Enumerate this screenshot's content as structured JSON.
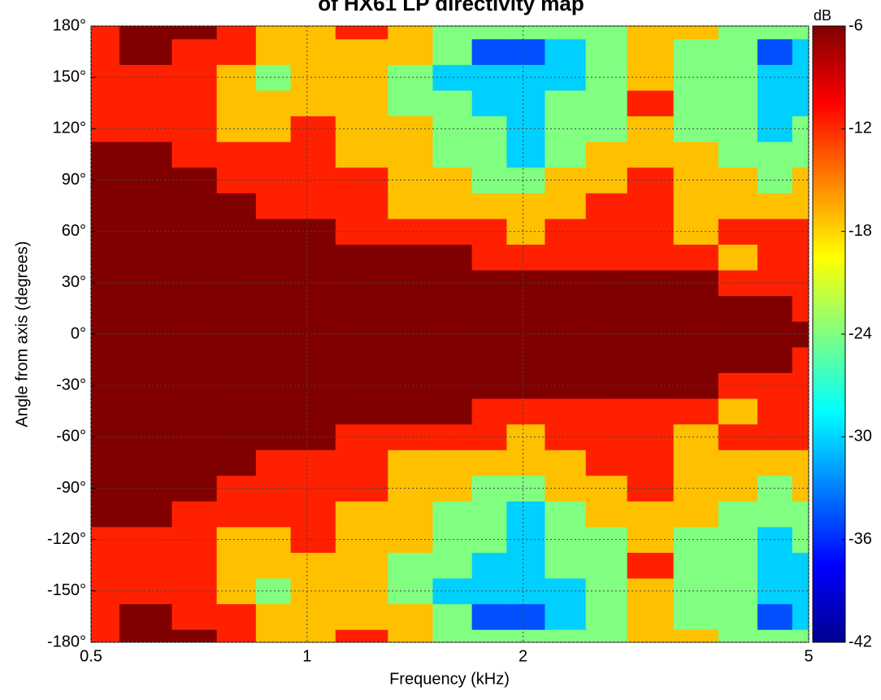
{
  "chart_data": {
    "type": "contour",
    "title": "of HX61 LP directivity map",
    "x_label": "Frequency (kHz)",
    "y_label": "Angle from axis (degrees)",
    "colorbar_label": "dB",
    "log_x": true,
    "grid": true,
    "xlim": [
      0.5,
      5
    ],
    "xticks": [
      0.5,
      1,
      2,
      5
    ],
    "ylim": [
      -180,
      180
    ],
    "yticks": [
      {
        "value": -180,
        "label": "-180°"
      },
      {
        "value": -150,
        "label": "-150°"
      },
      {
        "value": -120,
        "label": "-120°"
      },
      {
        "value": -90,
        "label": "-90°"
      },
      {
        "value": -60,
        "label": "-60°"
      },
      {
        "value": -30,
        "label": "-30°"
      },
      {
        "value": 0,
        "label": "0°"
      },
      {
        "value": 30,
        "label": "30°"
      },
      {
        "value": 60,
        "label": "60°"
      },
      {
        "value": 90,
        "label": "90°"
      },
      {
        "value": 120,
        "label": "120°"
      },
      {
        "value": 150,
        "label": "150°"
      },
      {
        "value": 180,
        "label": "180°"
      }
    ],
    "clim": [
      -42,
      -6
    ],
    "cticks": [
      -6,
      -12,
      -18,
      -24,
      -30,
      -36,
      -42
    ],
    "levels": [
      -36,
      -30,
      -24,
      -18,
      -12,
      -6
    ],
    "colors": [
      "#00008f",
      "#0050ff",
      "#00d0ff",
      "#80ff80",
      "#ffc000",
      "#ff2000",
      "#800000"
    ],
    "x": [
      0.5,
      0.6,
      0.7,
      0.8,
      0.9,
      1,
      1.2,
      1.4,
      1.6,
      1.8,
      2,
      2.3,
      2.6,
      3,
      3.5,
      4,
      4.5,
      5
    ],
    "y": [
      -180,
      -165,
      -150,
      -135,
      -120,
      -105,
      -90,
      -75,
      -60,
      -45,
      -30,
      -15,
      0,
      15,
      30,
      45,
      60,
      75,
      90,
      105,
      120,
      135,
      150,
      165,
      180
    ],
    "z": [
      [
        -8,
        -5,
        -5,
        -9,
        -12,
        -14,
        -11,
        -15,
        -20,
        -21,
        -22,
        -19,
        -18,
        -16,
        -17,
        -20,
        -23,
        -22
      ],
      [
        -6,
        -5,
        -6,
        -10,
        -13,
        -15,
        -12,
        -17,
        -22,
        -30,
        -34,
        -25,
        -21,
        -17,
        -18,
        -21,
        -30,
        -26
      ],
      [
        -8,
        -7,
        -9,
        -12,
        -20,
        -14,
        -13,
        -21,
        -24,
        -28,
        -29,
        -24,
        -22,
        -17,
        -19,
        -21,
        -29,
        -27
      ],
      [
        -9,
        -10,
        -10,
        -13,
        -15,
        -13,
        -14,
        -19,
        -22,
        -24,
        -26,
        -22,
        -22,
        -10,
        -18,
        -20,
        -26,
        -26
      ],
      [
        -8,
        -8,
        -9,
        -12,
        -13,
        -11,
        -13,
        -17,
        -20,
        -23,
        -27,
        -20,
        -20,
        -16,
        -20,
        -22,
        -24,
        -22
      ],
      [
        -5,
        -4,
        -7,
        -10,
        -11,
        -11,
        -12,
        -16,
        -19,
        -22,
        -25,
        -19,
        -16,
        -13,
        -17,
        -20,
        -21,
        -20
      ],
      [
        -3,
        -3,
        -5,
        -7,
        -9,
        -10,
        -11,
        -14,
        -16,
        -19,
        -20,
        -16,
        -13,
        -10,
        -14,
        -17,
        -19,
        -17
      ],
      [
        -2,
        -2,
        -3,
        -5,
        -7,
        -8,
        -10,
        -13,
        -15,
        -14,
        -17,
        -13,
        -11,
        -9,
        -12,
        -14,
        -16,
        -15
      ],
      [
        -2,
        -2,
        -2,
        -2,
        -2,
        -4,
        -7,
        -9,
        -10,
        -11,
        -14,
        -10,
        -9,
        -11,
        -13,
        -10,
        -9,
        -10
      ],
      [
        -3,
        -3,
        -3,
        -3,
        -3,
        -3,
        -3,
        -3,
        -5,
        -7,
        -8,
        -8,
        -6,
        -8,
        -9,
        -13,
        -10,
        -10
      ],
      [
        -2,
        -2,
        -2,
        -2,
        -2,
        -2,
        -2,
        -2,
        -2,
        -2,
        -2,
        -2,
        -2,
        -3,
        -5,
        -8,
        -10,
        -9
      ],
      [
        -2,
        -2,
        -2,
        -2,
        -2,
        -2,
        -2,
        -2,
        -2,
        -2,
        -2,
        -2,
        -2,
        -2,
        -2,
        -3,
        -5,
        -8
      ],
      [
        -2,
        -2,
        -2,
        -2,
        -2,
        -2,
        -2,
        -2,
        -2,
        -2,
        -2,
        -2,
        -2,
        -2,
        -2,
        -2,
        -2,
        -2
      ],
      [
        -2,
        -2,
        -2,
        -2,
        -2,
        -2,
        -2,
        -2,
        -2,
        -2,
        -2,
        -2,
        -2,
        -2,
        -2,
        -3,
        -5,
        -8
      ],
      [
        -2,
        -2,
        -2,
        -2,
        -2,
        -2,
        -2,
        -2,
        -2,
        -2,
        -2,
        -2,
        -2,
        -3,
        -5,
        -8,
        -10,
        -9
      ],
      [
        -3,
        -3,
        -3,
        -3,
        -3,
        -3,
        -3,
        -3,
        -5,
        -7,
        -8,
        -8,
        -6,
        -8,
        -9,
        -13,
        -10,
        -10
      ],
      [
        -2,
        -2,
        -2,
        -2,
        -2,
        -4,
        -7,
        -9,
        -10,
        -11,
        -14,
        -10,
        -9,
        -11,
        -13,
        -10,
        -9,
        -10
      ],
      [
        -2,
        -2,
        -3,
        -5,
        -7,
        -8,
        -10,
        -13,
        -15,
        -14,
        -17,
        -13,
        -11,
        -9,
        -12,
        -14,
        -16,
        -15
      ],
      [
        -3,
        -3,
        -5,
        -7,
        -9,
        -10,
        -11,
        -14,
        -16,
        -19,
        -20,
        -16,
        -13,
        -10,
        -14,
        -17,
        -19,
        -17
      ],
      [
        -5,
        -4,
        -7,
        -10,
        -11,
        -11,
        -12,
        -16,
        -19,
        -22,
        -25,
        -19,
        -16,
        -13,
        -17,
        -20,
        -21,
        -20
      ],
      [
        -8,
        -8,
        -9,
        -12,
        -13,
        -11,
        -13,
        -17,
        -20,
        -23,
        -27,
        -20,
        -20,
        -16,
        -20,
        -22,
        -24,
        -22
      ],
      [
        -9,
        -10,
        -10,
        -13,
        -15,
        -13,
        -14,
        -19,
        -22,
        -24,
        -26,
        -22,
        -22,
        -10,
        -18,
        -20,
        -26,
        -26
      ],
      [
        -8,
        -7,
        -9,
        -12,
        -20,
        -14,
        -13,
        -21,
        -24,
        -28,
        -29,
        -24,
        -22,
        -17,
        -19,
        -21,
        -29,
        -27
      ],
      [
        -6,
        -5,
        -6,
        -10,
        -13,
        -15,
        -12,
        -17,
        -22,
        -30,
        -34,
        -25,
        -21,
        -17,
        -18,
        -21,
        -30,
        -26
      ],
      [
        -8,
        -5,
        -5,
        -9,
        -12,
        -14,
        -11,
        -15,
        -20,
        -21,
        -22,
        -19,
        -18,
        -16,
        -17,
        -20,
        -23,
        -22
      ]
    ]
  }
}
